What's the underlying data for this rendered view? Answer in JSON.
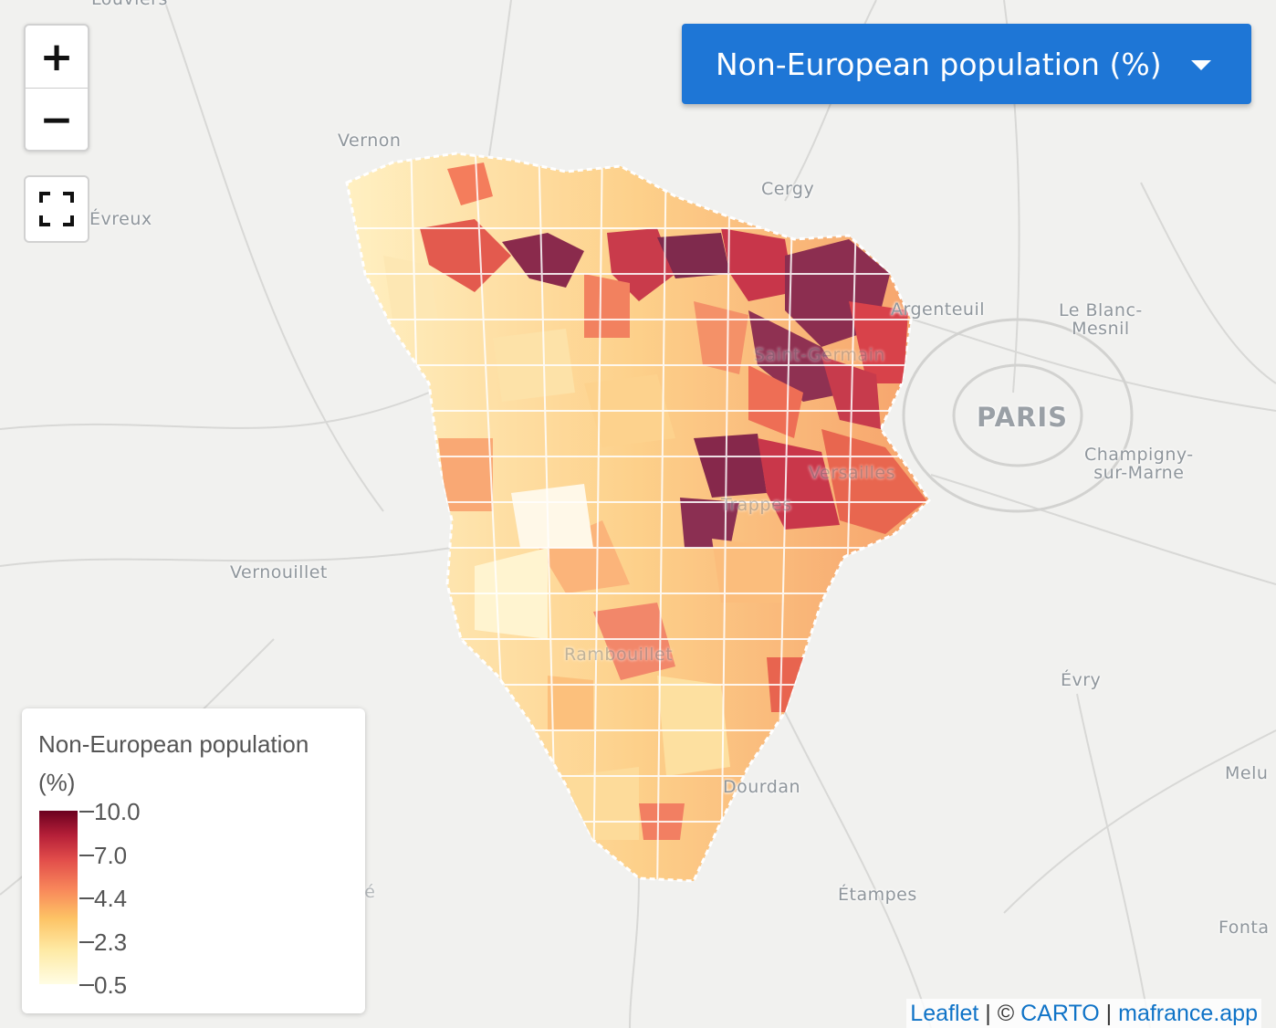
{
  "selector": {
    "label": "Non-European population (%)"
  },
  "zoom": {
    "in": "+",
    "out": "−"
  },
  "cities": [
    {
      "id": "louviers",
      "text": "Louviers"
    },
    {
      "id": "vernon",
      "text": "Vernon"
    },
    {
      "id": "evreux",
      "text": "Évreux"
    },
    {
      "id": "cergy",
      "text": "Cergy"
    },
    {
      "id": "argenteuil",
      "text": "Argenteuil"
    },
    {
      "id": "le-blanc-mesnil",
      "text": "Le Blanc-\nMesnil"
    },
    {
      "id": "paris",
      "text": "PARIS"
    },
    {
      "id": "champigny",
      "text": "Champigny-\nsur-Marne"
    },
    {
      "id": "vernouillet",
      "text": "Vernouillet"
    },
    {
      "id": "evry",
      "text": "Évry"
    },
    {
      "id": "melun",
      "text": "Melu"
    },
    {
      "id": "dourdan",
      "text": "Dourdan"
    },
    {
      "id": "etampes",
      "text": "Étampes"
    },
    {
      "id": "fonta",
      "text": "Fonta"
    },
    {
      "id": "luce",
      "text": "Lucé"
    },
    {
      "id": "versailles",
      "text": "Versailles"
    },
    {
      "id": "trappes",
      "text": "Trappes"
    },
    {
      "id": "rambouillet",
      "text": "Rambouillet"
    },
    {
      "id": "saint-germain",
      "text": "Saint-Germain"
    }
  ],
  "legend": {
    "title": "Non-European population (%)",
    "ticks": [
      "10.0",
      "7.0",
      "4.4",
      "2.3",
      "0.5"
    ]
  },
  "attribution": {
    "leaflet": "Leaflet",
    "sep1": " | © ",
    "carto": "CARTO",
    "sep2": " | ",
    "site": "mafrance.app"
  },
  "colors": {
    "accent": "#1e76d6",
    "scale": [
      "#fffde4",
      "#fee9a3",
      "#fdc365",
      "#f8865a",
      "#e14c4a",
      "#b51f38",
      "#6b001f"
    ]
  }
}
